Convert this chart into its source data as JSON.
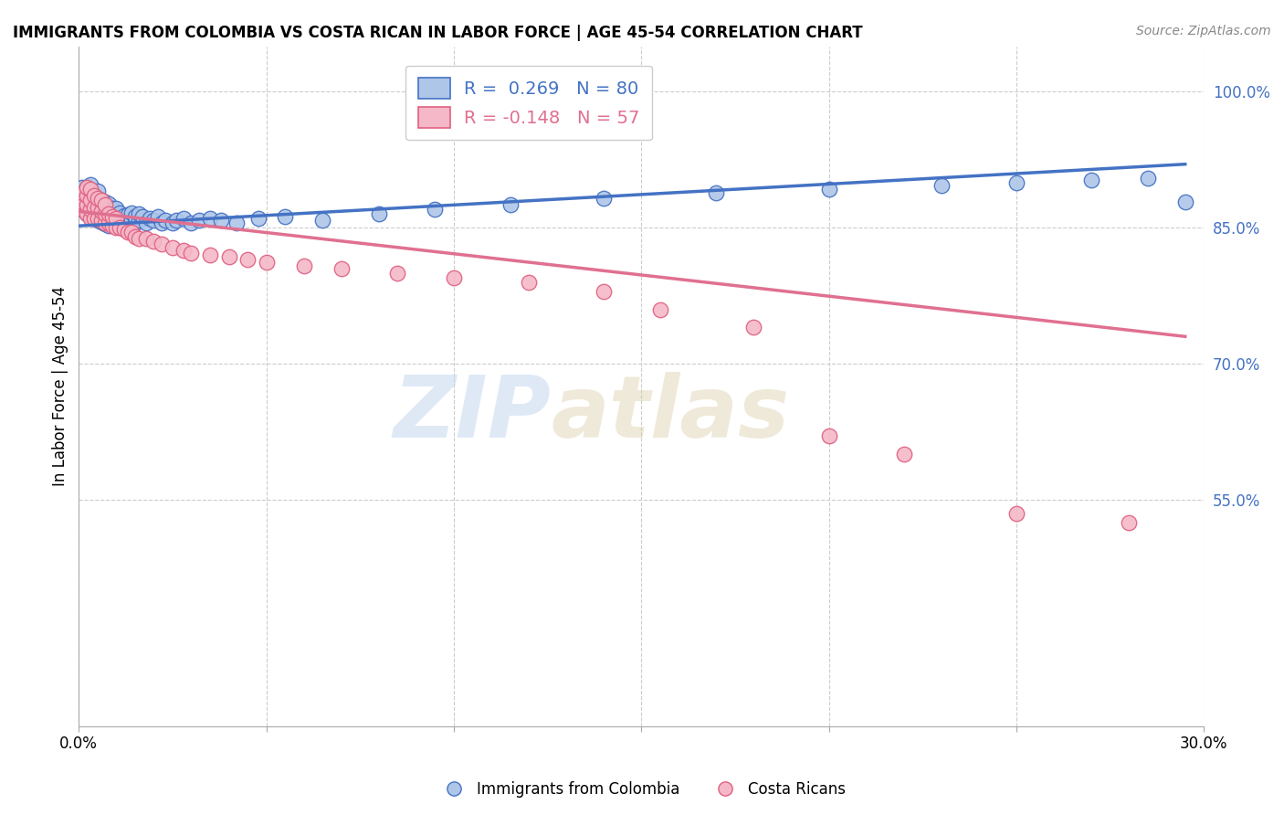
{
  "title": "IMMIGRANTS FROM COLOMBIA VS COSTA RICAN IN LABOR FORCE | AGE 45-54 CORRELATION CHART",
  "source": "Source: ZipAtlas.com",
  "ylabel": "In Labor Force | Age 45-54",
  "xlim": [
    0.0,
    0.3
  ],
  "ylim": [
    0.3,
    1.05
  ],
  "xtick_vals": [
    0.0,
    0.05,
    0.1,
    0.15,
    0.2,
    0.25,
    0.3
  ],
  "ytick_right_labels": [
    "100.0%",
    "85.0%",
    "70.0%",
    "55.0%"
  ],
  "ytick_right_values": [
    1.0,
    0.85,
    0.7,
    0.55
  ],
  "blue_R": "0.269",
  "blue_N": "80",
  "pink_R": "-0.148",
  "pink_N": "57",
  "blue_color": "#aec6e8",
  "blue_edge_color": "#4472c4",
  "pink_color": "#f4b8c8",
  "pink_edge_color": "#e06080",
  "blue_line_color": "#4472c4",
  "pink_line_color": "#e07090",
  "watermark_zip": "ZIP",
  "watermark_atlas": "atlas",
  "blue_scatter_x": [
    0.001,
    0.001,
    0.001,
    0.002,
    0.002,
    0.002,
    0.002,
    0.003,
    0.003,
    0.003,
    0.003,
    0.003,
    0.004,
    0.004,
    0.004,
    0.004,
    0.005,
    0.005,
    0.005,
    0.005,
    0.005,
    0.006,
    0.006,
    0.006,
    0.006,
    0.007,
    0.007,
    0.007,
    0.007,
    0.008,
    0.008,
    0.008,
    0.008,
    0.009,
    0.009,
    0.009,
    0.01,
    0.01,
    0.01,
    0.011,
    0.011,
    0.012,
    0.012,
    0.013,
    0.013,
    0.014,
    0.014,
    0.015,
    0.015,
    0.016,
    0.016,
    0.017,
    0.018,
    0.019,
    0.02,
    0.021,
    0.022,
    0.023,
    0.025,
    0.026,
    0.028,
    0.03,
    0.032,
    0.035,
    0.038,
    0.042,
    0.048,
    0.055,
    0.065,
    0.08,
    0.095,
    0.115,
    0.14,
    0.17,
    0.2,
    0.23,
    0.25,
    0.27,
    0.285,
    0.295
  ],
  "blue_scatter_y": [
    0.87,
    0.88,
    0.895,
    0.865,
    0.875,
    0.885,
    0.895,
    0.862,
    0.87,
    0.878,
    0.888,
    0.898,
    0.86,
    0.868,
    0.876,
    0.886,
    0.858,
    0.866,
    0.874,
    0.882,
    0.89,
    0.856,
    0.864,
    0.872,
    0.88,
    0.854,
    0.862,
    0.87,
    0.878,
    0.852,
    0.86,
    0.868,
    0.876,
    0.855,
    0.863,
    0.871,
    0.855,
    0.863,
    0.871,
    0.858,
    0.866,
    0.855,
    0.863,
    0.856,
    0.864,
    0.858,
    0.866,
    0.855,
    0.862,
    0.858,
    0.865,
    0.862,
    0.855,
    0.86,
    0.858,
    0.862,
    0.855,
    0.858,
    0.855,
    0.858,
    0.86,
    0.855,
    0.858,
    0.86,
    0.858,
    0.855,
    0.86,
    0.862,
    0.858,
    0.865,
    0.87,
    0.875,
    0.882,
    0.888,
    0.893,
    0.897,
    0.9,
    0.903,
    0.905,
    0.878
  ],
  "pink_scatter_x": [
    0.001,
    0.001,
    0.001,
    0.002,
    0.002,
    0.002,
    0.002,
    0.003,
    0.003,
    0.003,
    0.003,
    0.004,
    0.004,
    0.004,
    0.005,
    0.005,
    0.005,
    0.006,
    0.006,
    0.006,
    0.007,
    0.007,
    0.007,
    0.008,
    0.008,
    0.009,
    0.009,
    0.01,
    0.01,
    0.011,
    0.012,
    0.013,
    0.014,
    0.015,
    0.016,
    0.018,
    0.02,
    0.022,
    0.025,
    0.028,
    0.03,
    0.035,
    0.04,
    0.045,
    0.05,
    0.06,
    0.07,
    0.085,
    0.1,
    0.12,
    0.14,
    0.155,
    0.18,
    0.2,
    0.22,
    0.25,
    0.28
  ],
  "pink_scatter_y": [
    0.87,
    0.878,
    0.888,
    0.865,
    0.875,
    0.885,
    0.895,
    0.86,
    0.87,
    0.88,
    0.892,
    0.86,
    0.872,
    0.885,
    0.86,
    0.872,
    0.882,
    0.858,
    0.868,
    0.88,
    0.855,
    0.865,
    0.875,
    0.855,
    0.865,
    0.852,
    0.862,
    0.85,
    0.86,
    0.85,
    0.848,
    0.845,
    0.845,
    0.84,
    0.838,
    0.838,
    0.835,
    0.832,
    0.828,
    0.825,
    0.822,
    0.82,
    0.818,
    0.815,
    0.812,
    0.808,
    0.805,
    0.8,
    0.795,
    0.79,
    0.78,
    0.76,
    0.74,
    0.62,
    0.6,
    0.535,
    0.525
  ],
  "blue_line_x0": 0.0,
  "blue_line_x1": 0.295,
  "blue_line_y0": 0.852,
  "blue_line_y1": 0.92,
  "pink_line_x0": 0.0,
  "pink_line_x1": 0.295,
  "pink_line_y0": 0.868,
  "pink_line_y1": 0.73
}
